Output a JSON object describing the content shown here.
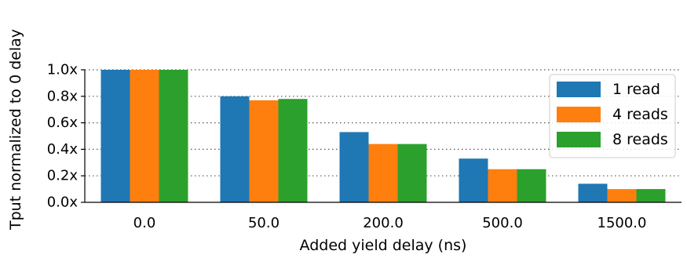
{
  "chart_data": {
    "type": "bar",
    "categories": [
      "0.0",
      "50.0",
      "200.0",
      "500.0",
      "1500.0"
    ],
    "series": [
      {
        "name": "1 read",
        "color": "#1f77b4",
        "values": [
          1.0,
          0.8,
          0.53,
          0.33,
          0.14
        ]
      },
      {
        "name": "4 reads",
        "color": "#ff7f0e",
        "values": [
          1.0,
          0.77,
          0.44,
          0.25,
          0.1
        ]
      },
      {
        "name": "8 reads",
        "color": "#2ca02c",
        "values": [
          1.0,
          0.78,
          0.44,
          0.25,
          0.1
        ]
      }
    ],
    "xlabel": "Added yield delay (ns)",
    "ylabel": "Tput normalized to 0 delay",
    "ylim": [
      0,
      1.0
    ],
    "yticks": [
      0.0,
      0.2,
      0.4,
      0.6,
      0.8,
      1.0
    ],
    "ytick_labels": [
      "0.0x",
      "0.2x",
      "0.4x",
      "0.6x",
      "0.8x",
      "1.0x"
    ],
    "grid": "horizontal dotted",
    "legend_position": "right"
  }
}
